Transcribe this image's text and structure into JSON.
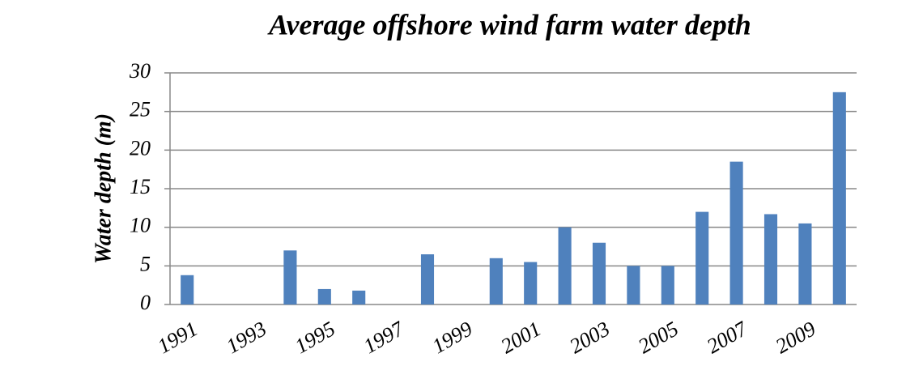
{
  "chart_data": {
    "type": "bar",
    "title": "Average offshore wind farm water depth",
    "y_label": "Water depth (m)",
    "categories": [
      "1991",
      null,
      "1993",
      null,
      "1995",
      null,
      "1997",
      null,
      "1999",
      null,
      "2001",
      null,
      "2003",
      null,
      "2005",
      null,
      "2007",
      null,
      "2009",
      null
    ],
    "values": [
      3.8,
      0,
      0,
      7,
      2,
      1.8,
      0,
      6.5,
      0,
      6,
      5.5,
      10,
      8,
      5,
      5,
      12,
      18.5,
      11.7,
      10.5,
      27.5
    ],
    "color": "#4f81bd",
    "ylim": [
      0,
      30
    ],
    "yticks": [
      0,
      5,
      10,
      15,
      20,
      25,
      30
    ],
    "grid": true
  }
}
